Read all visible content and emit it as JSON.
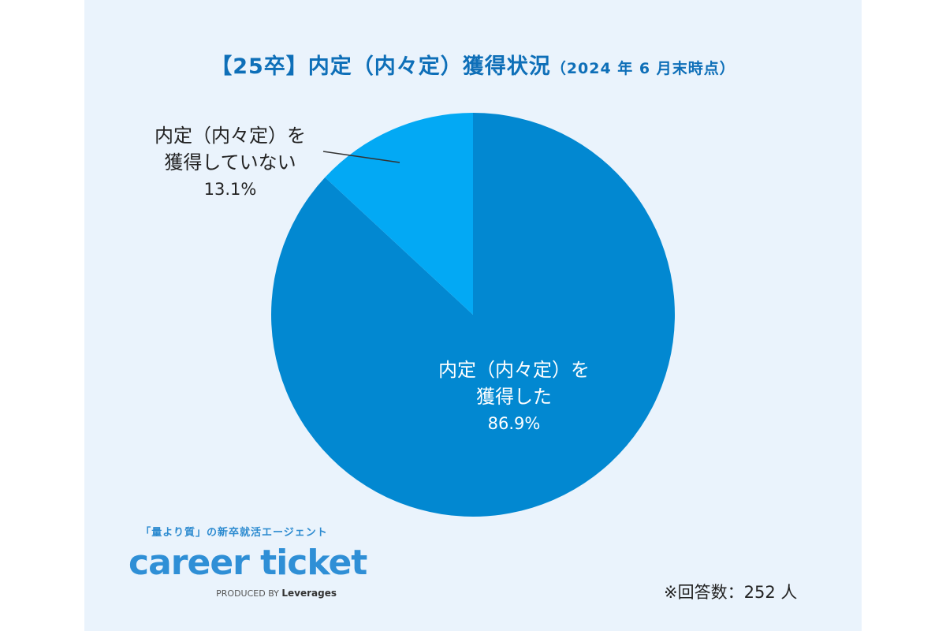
{
  "title": {
    "main": "【25卒】内定（内々定）獲得状況",
    "sub": "（2024 年 6 月末時点）"
  },
  "chart_data": {
    "type": "pie",
    "categories": [
      "内定（内々定）を獲得した",
      "内定（内々定）を獲得していない"
    ],
    "values": [
      86.9,
      13.1
    ],
    "unit": "%",
    "colors": [
      "#0288d1",
      "#03a9f4"
    ],
    "start": "12 o'clock, clockwise"
  },
  "labels": {
    "got_line1": "内定（内々定）を",
    "got_line2": "獲得した",
    "got_pct": "86.9%",
    "not_line1": "内定（内々定）を",
    "not_line2": "獲得していない",
    "not_pct": "13.1%"
  },
  "brand": {
    "tagline": "「量より質」の新卒就活エージェント",
    "logo": "career ticket",
    "produced_by": "PRODUCED BY",
    "company": "Leverages"
  },
  "note": "※回答数：252 人"
}
